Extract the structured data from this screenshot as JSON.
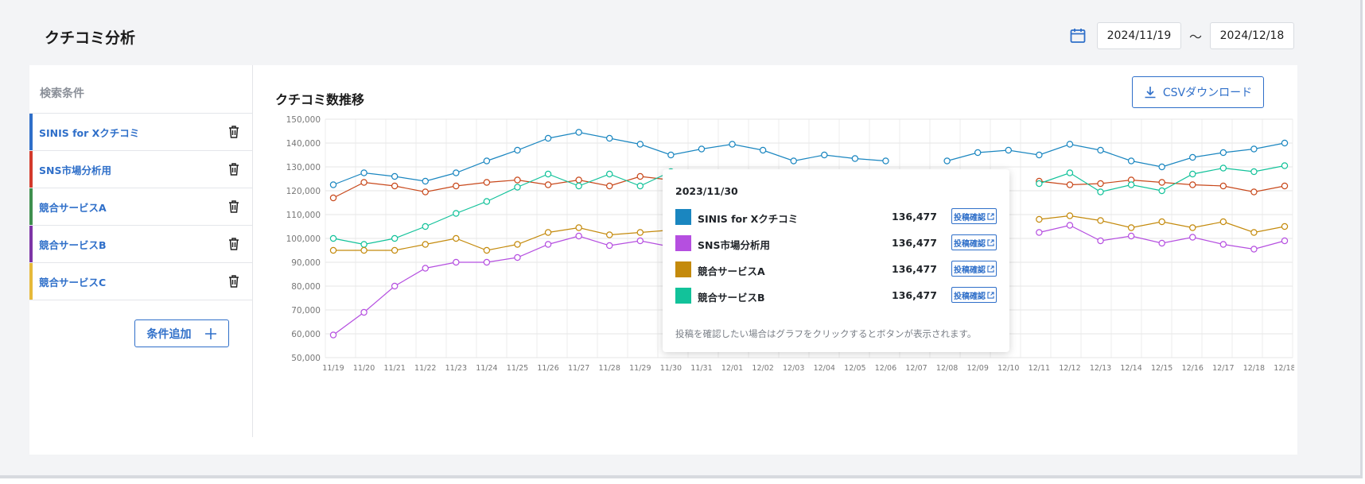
{
  "page": {
    "title": "クチコミ分析"
  },
  "date_range": {
    "start": "2024/11/19",
    "separator": "〜",
    "end": "2024/12/18",
    "icon": "calendar-icon"
  },
  "sidebar": {
    "title": "検索条件",
    "conditions": [
      {
        "label": "SINIS for Xクチコミ",
        "color": "#2f6fc9"
      },
      {
        "label": "SNS市場分析用",
        "color": "#d33a2c"
      },
      {
        "label": "競合サービスA",
        "color": "#3f8f4f"
      },
      {
        "label": "競合サービスB",
        "color": "#7d35a6"
      },
      {
        "label": "競合サービスC",
        "color": "#e6b93a"
      }
    ],
    "add_label": "条件追加"
  },
  "main": {
    "chart_title": "クチコミ数推移",
    "csv_label": "CSVダウンロード"
  },
  "tooltip": {
    "date": "2023/11/30",
    "rows": [
      {
        "name": "SINIS for Xクチコミ",
        "value": "136,477",
        "color": "#1a86c0",
        "button": "投稿確認"
      },
      {
        "name": "SNS市場分析用",
        "value": "136,477",
        "color": "#b54fe0",
        "button": "投稿確認"
      },
      {
        "name": "競合サービスA",
        "value": "136,477",
        "color": "#c48a0c",
        "button": "投稿確認"
      },
      {
        "name": "競合サービスB",
        "value": "136,477",
        "color": "#12c29a",
        "button": "投稿確認"
      }
    ],
    "note": "投稿を確認したい場合はグラフをクリックするとボタンが表示されます。"
  },
  "chart_data": {
    "type": "line",
    "title": "クチコミ数推移",
    "xlabel": "",
    "ylabel": "",
    "ylim": [
      50000,
      150000
    ],
    "yticks": [
      50000,
      60000,
      70000,
      80000,
      90000,
      100000,
      110000,
      120000,
      130000,
      140000,
      150000
    ],
    "ytick_labels": [
      "50,000",
      "60,000",
      "70,000",
      "80,000",
      "90,000",
      "100,000",
      "110,000",
      "120,000",
      "130,000",
      "140,000",
      "150,000"
    ],
    "categories": [
      "11/19",
      "11/20",
      "11/21",
      "11/22",
      "11/23",
      "11/24",
      "11/25",
      "11/26",
      "11/27",
      "11/28",
      "11/29",
      "11/30",
      "11/31",
      "12/01",
      "12/02",
      "12/03",
      "12/04",
      "12/05",
      "12/06",
      "12/07",
      "12/08",
      "12/09",
      "12/10",
      "12/11",
      "12/12",
      "12/13",
      "12/14",
      "12/15",
      "12/16",
      "12/17",
      "12/18",
      "12/18"
    ],
    "grid": true,
    "series": [
      {
        "color": "#1a86c0",
        "values": [
          122500,
          127500,
          126000,
          124000,
          127500,
          132500,
          137000,
          142000,
          144500,
          142000,
          139500,
          135000,
          137500,
          139500,
          137000,
          132500,
          135000,
          133500,
          132500,
          null,
          132500,
          136000,
          137000,
          135000,
          139500,
          137000,
          132500,
          130000,
          134000,
          136000,
          137500,
          140000
        ]
      },
      {
        "color": "#c8481b",
        "values": [
          117000,
          123500,
          122000,
          119500,
          122000,
          123500,
          124500,
          122500,
          124500,
          122000,
          126000,
          124500,
          null,
          null,
          null,
          null,
          null,
          null,
          null,
          null,
          null,
          null,
          null,
          124000,
          122500,
          123000,
          124500,
          123500,
          122500,
          122000,
          119500,
          122000
        ]
      },
      {
        "color": "#12c29a",
        "values": [
          100000,
          97500,
          100000,
          105000,
          110500,
          115500,
          121500,
          127000,
          122000,
          127000,
          122000,
          128000,
          null,
          null,
          null,
          null,
          null,
          null,
          null,
          null,
          null,
          null,
          null,
          123000,
          127500,
          119500,
          122500,
          120000,
          127000,
          129500,
          128000,
          130500
        ]
      },
      {
        "color": "#c48a0c",
        "values": [
          95000,
          95000,
          95000,
          97500,
          100000,
          95000,
          97500,
          102500,
          104500,
          101500,
          102500,
          103500,
          null,
          null,
          null,
          null,
          null,
          null,
          null,
          null,
          null,
          null,
          null,
          108000,
          109500,
          107500,
          104500,
          107000,
          104500,
          107000,
          102500,
          105000
        ]
      },
      {
        "color": "#b54fe0",
        "values": [
          59500,
          69000,
          80000,
          87500,
          90000,
          90000,
          92000,
          97500,
          101000,
          97000,
          99000,
          96500,
          null,
          null,
          null,
          null,
          null,
          null,
          null,
          null,
          null,
          null,
          null,
          102500,
          105500,
          99000,
          101000,
          98000,
          100500,
          97500,
          95500,
          99000
        ]
      }
    ]
  }
}
